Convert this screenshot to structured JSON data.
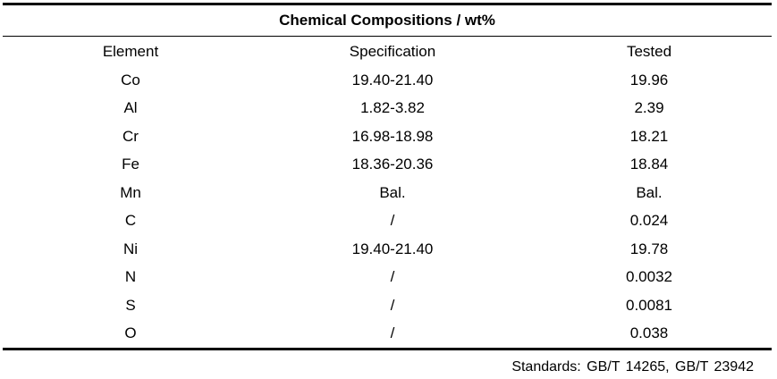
{
  "table": {
    "title": "Chemical Compositions / wt%",
    "headers": [
      "Element",
      "Specification",
      "Tested"
    ],
    "rows": [
      [
        "Co",
        "19.40-21.40",
        "19.96"
      ],
      [
        "Al",
        "1.82-3.82",
        "2.39"
      ],
      [
        "Cr",
        "16.98-18.98",
        "18.21"
      ],
      [
        "Fe",
        "18.36-20.36",
        "18.84"
      ],
      [
        "Mn",
        "Bal.",
        "Bal."
      ],
      [
        "C",
        "/",
        "0.024"
      ],
      [
        "Ni",
        "19.40-21.40",
        "19.78"
      ],
      [
        "N",
        "/",
        "0.0032"
      ],
      [
        "S",
        "/",
        "0.0081"
      ],
      [
        "O",
        "/",
        "0.038"
      ]
    ]
  },
  "footer": {
    "standards": "Standards:  GB/T  14265,  GB/T  23942"
  }
}
